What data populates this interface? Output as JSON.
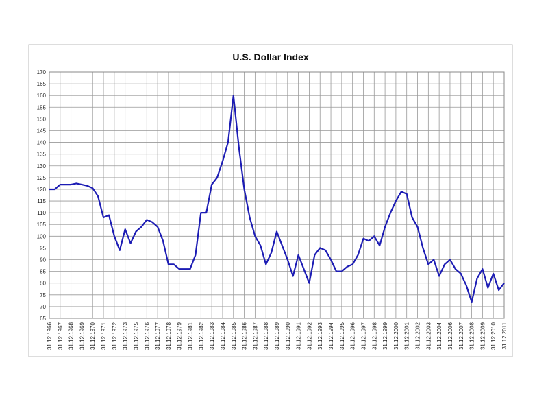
{
  "chart_data": {
    "type": "line",
    "title": "U.S. Dollar Index",
    "categories": [
      "31.12.1966",
      null,
      "31.12.1967",
      null,
      "31.12.1968",
      null,
      "31.12.1969",
      null,
      "31.12.1970",
      null,
      "31.12.1971",
      null,
      "31.12.1972",
      null,
      "31.12.1973",
      null,
      "31.12.1975",
      null,
      "31.12.1976",
      null,
      "31.12.1977",
      null,
      "31.12.1978",
      null,
      "31.12.1979",
      null,
      "31.12.1981",
      null,
      "31.12.1982",
      null,
      "31.12.1983",
      null,
      "31.12.1984",
      null,
      "31.12.1985",
      null,
      "31.12.1986",
      null,
      "31.12.1987",
      null,
      "31.12.1988",
      null,
      "31.12.1989",
      null,
      "31.12.1990",
      null,
      "31.12.1991",
      null,
      "31.12.1992",
      null,
      "31.12.1993",
      null,
      "31.12.1994",
      null,
      "31.12.1995",
      null,
      "31.12.1996",
      null,
      "31.12.1997",
      null,
      "31.12.1998",
      null,
      "31.12.1999",
      null,
      "31.12.2000",
      null,
      "31.12.2001",
      null,
      "31.12.2002",
      null,
      "31.12.2003",
      null,
      "31.12.2004",
      null,
      "31.12.2006",
      null,
      "31.12.2007",
      null,
      "31.12.2008",
      null,
      "31.12.2009",
      null,
      "31.12.2010",
      null,
      "31.12.2011"
    ],
    "values": [
      120,
      120,
      122,
      122,
      122,
      122.5,
      122,
      121.5,
      120.5,
      117,
      108,
      109,
      100,
      94,
      103,
      97,
      102,
      104,
      107,
      106,
      104,
      98,
      88,
      88,
      86,
      86,
      86,
      92,
      110,
      110,
      122,
      125,
      132,
      140,
      160,
      138,
      120,
      108,
      100,
      96,
      88,
      93,
      102,
      96,
      90,
      83,
      92,
      86,
      80,
      92,
      95,
      94,
      90,
      85,
      85,
      87,
      88,
      92,
      99,
      98,
      100,
      96,
      104,
      110,
      115,
      119,
      118,
      108,
      104,
      95,
      88,
      90,
      83,
      88,
      90,
      86,
      84,
      79,
      72,
      82,
      86,
      78,
      84,
      77,
      80
    ],
    "color": "#1c1cb4",
    "ylim": [
      65,
      170
    ],
    "yticks": [
      65,
      70,
      75,
      80,
      85,
      90,
      95,
      100,
      105,
      110,
      115,
      120,
      125,
      130,
      135,
      140,
      145,
      150,
      155,
      160,
      165,
      170
    ],
    "grid": true
  }
}
